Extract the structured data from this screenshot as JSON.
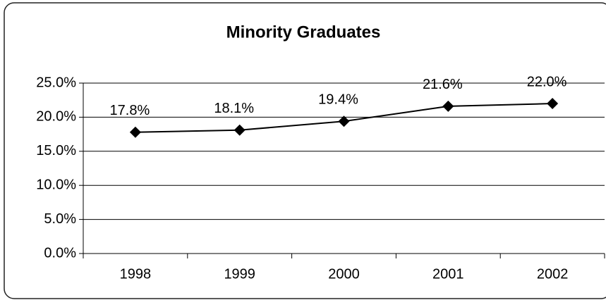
{
  "chart_data": {
    "type": "line",
    "title": "Minority Graduates",
    "categories": [
      "1998",
      "1999",
      "2000",
      "2001",
      "2002"
    ],
    "values": [
      17.8,
      18.1,
      19.4,
      21.6,
      22.0
    ],
    "value_labels": [
      "17.8%",
      "18.1%",
      "19.4%",
      "21.6%",
      "22.0%"
    ],
    "color": "#000000",
    "ylim": [
      0,
      25
    ],
    "yticks": [
      {
        "value": 0,
        "label": "0.0%"
      },
      {
        "value": 5,
        "label": "5.0%"
      },
      {
        "value": 10,
        "label": "10.0%"
      },
      {
        "value": 15,
        "label": "15.0%"
      },
      {
        "value": 20,
        "label": "20.0%"
      },
      {
        "value": 25,
        "label": "25.0%"
      }
    ],
    "grid": true
  }
}
